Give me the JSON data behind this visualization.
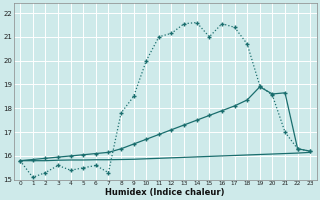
{
  "xlabel": "Humidex (Indice chaleur)",
  "background_color": "#ceeaea",
  "grid_color": "#ffffff",
  "line_color": "#1a6e6e",
  "xlim": [
    -0.5,
    23.5
  ],
  "ylim": [
    15,
    22.4
  ],
  "xticks": [
    0,
    1,
    2,
    3,
    4,
    5,
    6,
    7,
    8,
    9,
    10,
    11,
    12,
    13,
    14,
    15,
    16,
    17,
    18,
    19,
    20,
    21,
    22,
    23
  ],
  "yticks": [
    15,
    16,
    17,
    18,
    19,
    20,
    21,
    22
  ],
  "series1_x": [
    0,
    1,
    2,
    3,
    4,
    5,
    6,
    7,
    8,
    9,
    10,
    11,
    12,
    13,
    14,
    15,
    16,
    17,
    18,
    19,
    20,
    21,
    22,
    23
  ],
  "series1_y": [
    15.8,
    15.1,
    15.3,
    15.6,
    15.4,
    15.5,
    15.6,
    15.3,
    17.8,
    18.5,
    20.0,
    21.0,
    21.15,
    21.55,
    21.6,
    21.0,
    21.55,
    21.4,
    20.7,
    18.95,
    18.55,
    17.0,
    16.3,
    16.2
  ],
  "series2_x": [
    0,
    1,
    2,
    3,
    4,
    5,
    6,
    7,
    8,
    9,
    10,
    11,
    12,
    13,
    14,
    15,
    16,
    17,
    18,
    19,
    20,
    21,
    22,
    23
  ],
  "series2_y": [
    15.8,
    15.85,
    15.9,
    15.95,
    16.0,
    16.05,
    16.1,
    16.15,
    16.3,
    16.5,
    16.7,
    16.9,
    17.1,
    17.3,
    17.5,
    17.7,
    17.9,
    18.1,
    18.35,
    18.9,
    18.6,
    18.65,
    16.3,
    16.2
  ],
  "series3_x": [
    0,
    1,
    2,
    3,
    4,
    5,
    6,
    7,
    8,
    9,
    10,
    11,
    12,
    13,
    14,
    15,
    16,
    17,
    18,
    19,
    20,
    21,
    22,
    23
  ],
  "series3_y": [
    15.8,
    15.8,
    15.8,
    15.82,
    15.83,
    15.83,
    15.84,
    15.84,
    15.85,
    15.86,
    15.88,
    15.9,
    15.92,
    15.94,
    15.96,
    15.98,
    16.0,
    16.02,
    16.04,
    16.06,
    16.08,
    16.1,
    16.12,
    16.15
  ]
}
